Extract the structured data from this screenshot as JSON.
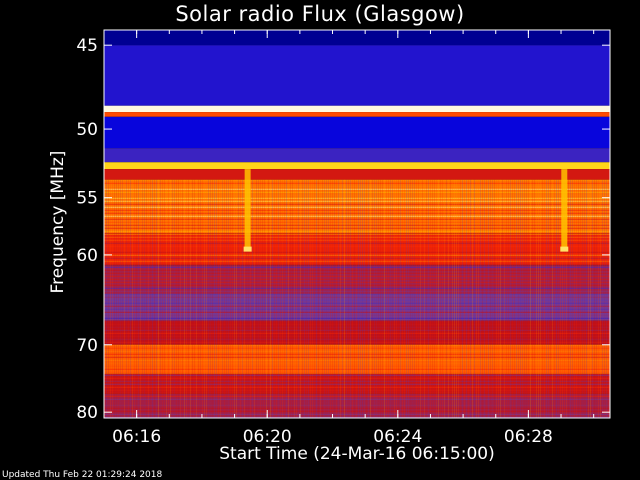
{
  "chart_data": {
    "type": "heatmap",
    "title": "Solar radio Flux (Glasgow)",
    "xlabel": "Start Time (24-Mar-16 06:15:00)",
    "ylabel": "Frequency [MHz]",
    "x_start": "06:15:00",
    "x_range_minutes": [
      0,
      15.5
    ],
    "x_ticks": [
      {
        "label": "06:16",
        "minute": 1
      },
      {
        "label": "06:20",
        "minute": 5
      },
      {
        "label": "06:24",
        "minute": 9
      },
      {
        "label": "06:28",
        "minute": 13
      }
    ],
    "y_range_mhz": [
      44.2,
      81.0
    ],
    "y_scale": "reciprocal (frequency increases downward)",
    "y_ticks": [
      45,
      50,
      55,
      60,
      70,
      80
    ],
    "colormap": [
      "#000070",
      "#0000e0",
      "#6a3fa8",
      "#c01018",
      "#ff2a00",
      "#ffd000",
      "#ffffff"
    ],
    "bands": [
      {
        "from_mhz": 44.2,
        "to_mhz": 45.0,
        "level": 0.05
      },
      {
        "from_mhz": 45.0,
        "to_mhz": 48.5,
        "level": 0.22
      },
      {
        "from_mhz": 48.5,
        "to_mhz": 48.9,
        "level": 0.98
      },
      {
        "from_mhz": 48.9,
        "to_mhz": 49.2,
        "level": 0.7
      },
      {
        "from_mhz": 49.2,
        "to_mhz": 51.3,
        "level": 0.18
      },
      {
        "from_mhz": 51.3,
        "to_mhz": 52.3,
        "level": 0.26
      },
      {
        "from_mhz": 52.3,
        "to_mhz": 52.8,
        "level": 0.85
      },
      {
        "from_mhz": 52.8,
        "to_mhz": 53.6,
        "level": 0.55
      },
      {
        "from_mhz": 53.6,
        "to_mhz": 58.0,
        "level": 0.74
      },
      {
        "from_mhz": 58.0,
        "to_mhz": 61.0,
        "level": 0.62
      },
      {
        "from_mhz": 61.0,
        "to_mhz": 64.0,
        "level": 0.44
      },
      {
        "from_mhz": 64.0,
        "to_mhz": 67.0,
        "level": 0.36
      },
      {
        "from_mhz": 67.0,
        "to_mhz": 70.0,
        "level": 0.5
      },
      {
        "from_mhz": 70.0,
        "to_mhz": 74.0,
        "level": 0.72
      },
      {
        "from_mhz": 74.0,
        "to_mhz": 77.0,
        "level": 0.52
      },
      {
        "from_mhz": 77.0,
        "to_mhz": 81.0,
        "level": 0.45
      }
    ],
    "bursts": [
      {
        "minute": 4.4,
        "from_mhz": 52.8,
        "to_mhz": 59.5
      },
      {
        "minute": 14.1,
        "from_mhz": 52.8,
        "to_mhz": 59.5
      }
    ]
  },
  "footer": "Updated Thu Feb 22 01:29:24 2018"
}
